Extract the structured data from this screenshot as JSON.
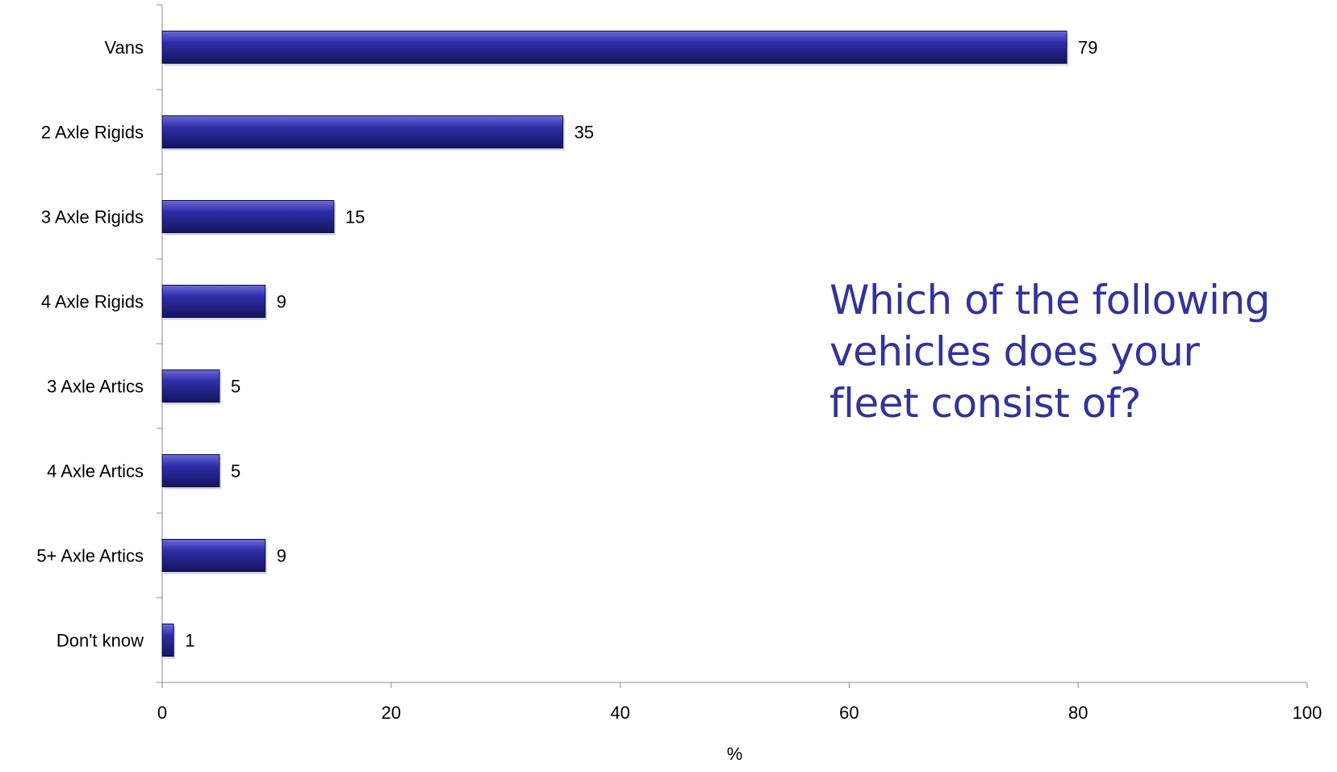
{
  "chart_data": {
    "type": "bar",
    "orientation": "horizontal",
    "categories": [
      "Vans",
      "2 Axle Rigids",
      "3 Axle Rigids",
      "4 Axle Rigids",
      "3 Axle Artics",
      "4 Axle Artics",
      "5+ Axle Artics",
      "Don't know"
    ],
    "values": [
      79,
      35,
      15,
      9,
      5,
      5,
      9,
      1
    ],
    "data_labels": [
      "79",
      "35",
      "15",
      "9",
      "5",
      "5",
      "9",
      "1"
    ],
    "xlabel": "%",
    "xlim": [
      0,
      100
    ],
    "xticks": [
      "0",
      "20",
      "40",
      "60",
      "80",
      "100"
    ],
    "grid": false,
    "legend": "none",
    "bar_color": "#2a2a8c",
    "annotation": "Which of the following vehicles does your fleet consist of?",
    "annotation_lines": [
      "Which of the following",
      "vehicles does your",
      "fleet consist of?"
    ],
    "annotation_color": "#33339a"
  }
}
